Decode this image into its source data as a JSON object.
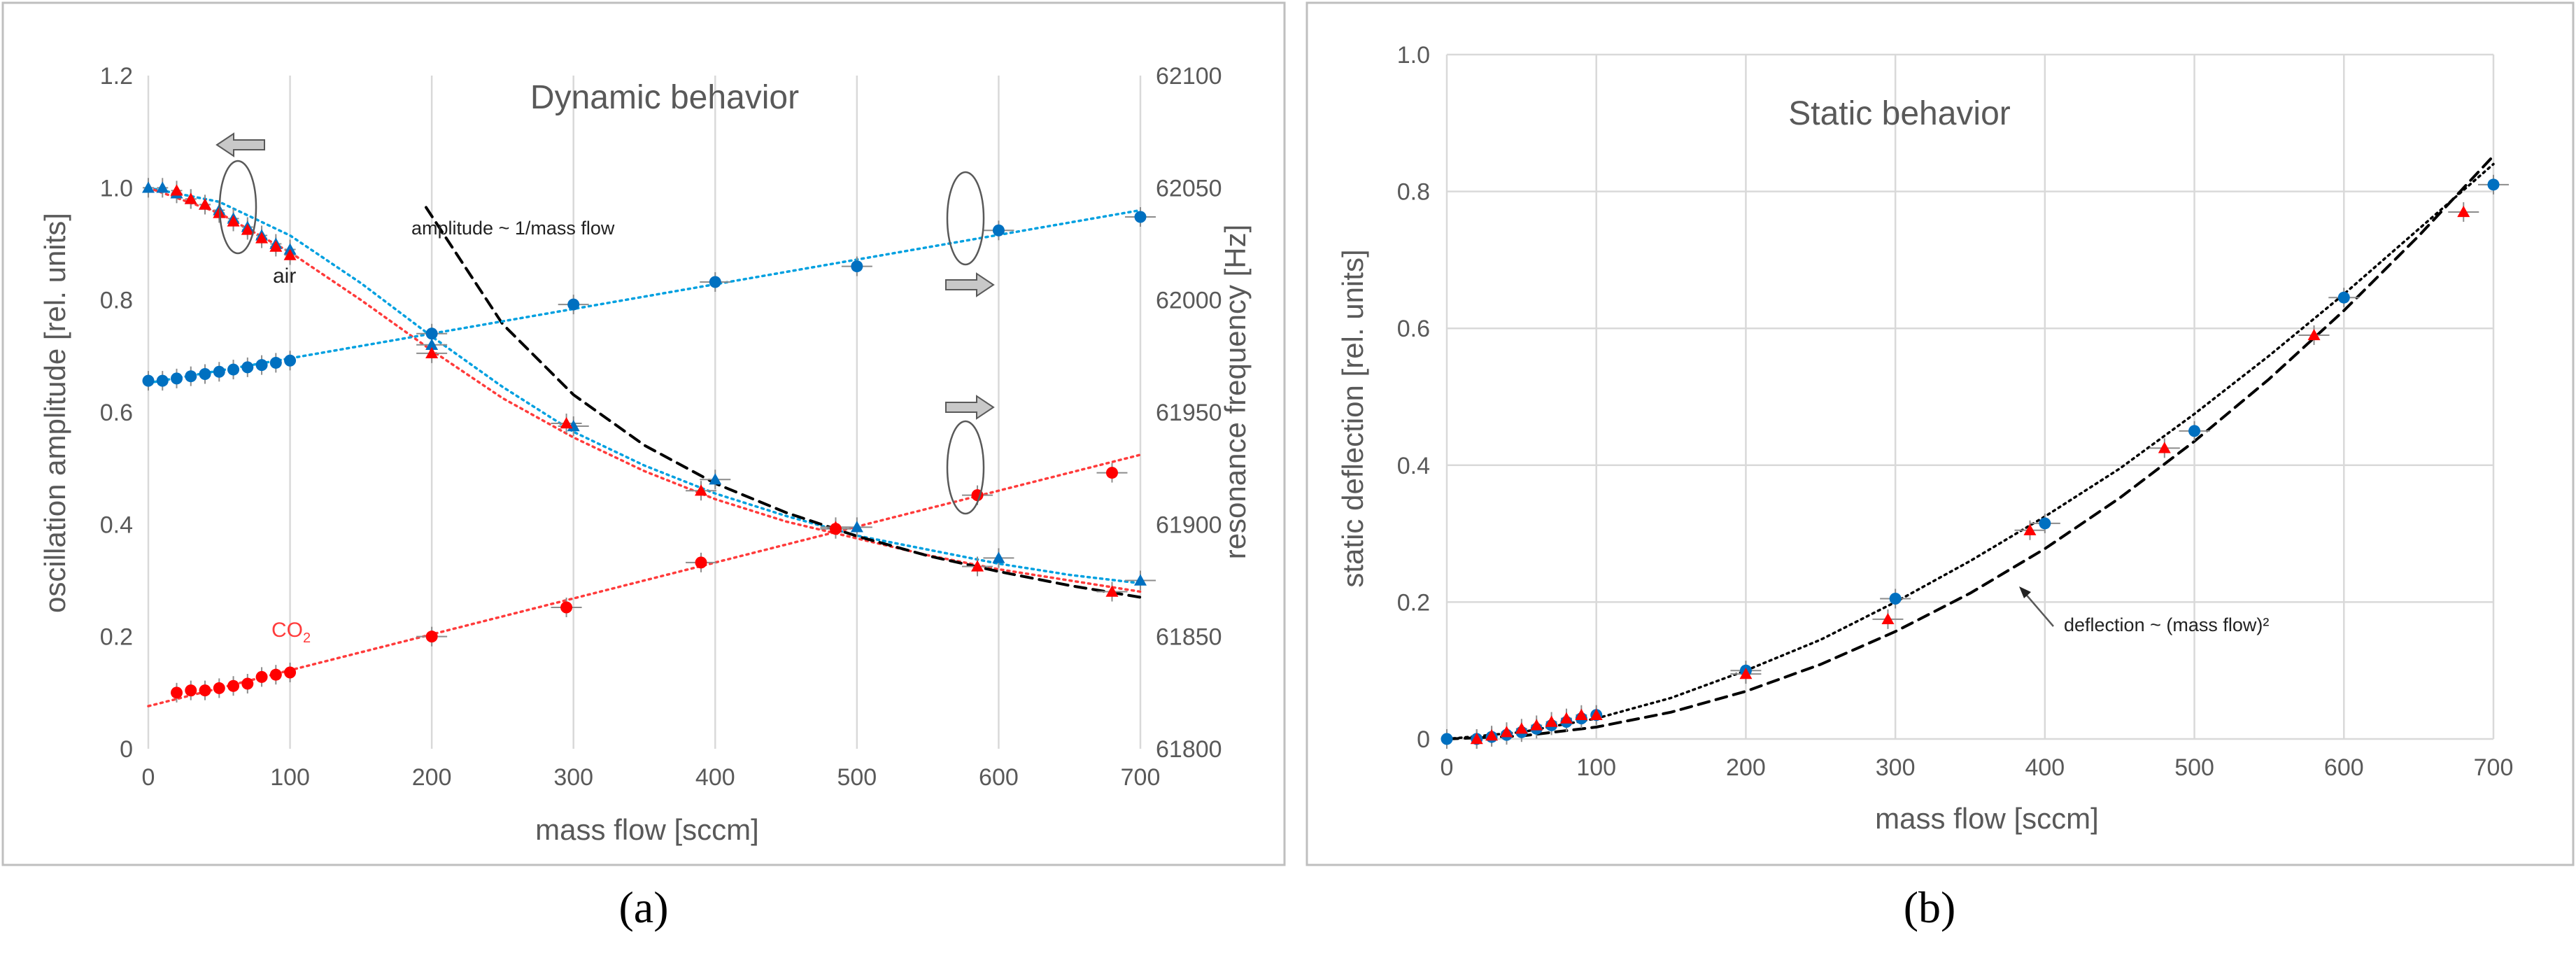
{
  "colors": {
    "air": "#0070c0",
    "co2": "#ff0000",
    "fit_air": "#00a0e0",
    "fit_co2": "#ff3b3b",
    "power_fit": "#000000",
    "arrow_fill": "#c8c8c8"
  },
  "chart_data": [
    {
      "id": "a",
      "panel_label": "(a)",
      "type": "scatter",
      "title": "Dynamic behavior",
      "xlabel": "mass flow [sccm]",
      "ylabel": "oscillation amplitude  [rel. units]",
      "y2label": "resonance frequency [Hz]",
      "xlim": [
        0,
        700
      ],
      "ylim": [
        0,
        1.2
      ],
      "y2lim": [
        61800,
        62100
      ],
      "xticks": [
        0,
        100,
        200,
        300,
        400,
        500,
        600,
        700
      ],
      "xtick_labels": [
        "0",
        "100",
        "200",
        "300",
        "400",
        "500",
        "600",
        "700"
      ],
      "yticks": [
        0,
        0.2,
        0.4,
        0.6,
        0.8,
        1,
        1.2
      ],
      "ytick_labels": [
        "0",
        "0.2",
        "0.4",
        "0.6",
        "0.8",
        "1.0",
        "1.2"
      ],
      "y2ticks": [
        61800,
        61850,
        61900,
        61950,
        62000,
        62050,
        62100
      ],
      "y2tick_labels": [
        "61800",
        "61850",
        "61900",
        "61950",
        "62000",
        "62050",
        "62100"
      ],
      "grid": "vertical",
      "annotations": {
        "air": "air",
        "co2": "CO",
        "co2_sub": "2",
        "power_law": "amplitude ~ 1/mass flow"
      },
      "series": [
        {
          "name": "air amplitude",
          "gas": "air",
          "marker": "triangle",
          "axis": "left",
          "x": [
            0,
            10,
            20,
            30,
            40,
            50,
            60,
            70,
            80,
            90,
            100,
            200,
            300,
            400,
            500,
            600,
            700
          ],
          "y": [
            1.0,
            1.0,
            0.99,
            0.98,
            0.97,
            0.96,
            0.945,
            0.93,
            0.915,
            0.9,
            0.89,
            0.72,
            0.575,
            0.48,
            0.395,
            0.34,
            0.3
          ]
        },
        {
          "name": "CO2 amplitude",
          "gas": "co2",
          "marker": "triangle",
          "axis": "left",
          "x": [
            20,
            30,
            40,
            50,
            60,
            70,
            80,
            90,
            100,
            200,
            295,
            390,
            485,
            585,
            680
          ],
          "y": [
            0.995,
            0.98,
            0.97,
            0.955,
            0.94,
            0.925,
            0.91,
            0.895,
            0.88,
            0.705,
            0.58,
            0.46,
            0.395,
            0.325,
            0.28
          ]
        },
        {
          "name": "air resonance frequency",
          "gas": "air",
          "marker": "circle",
          "axis": "right",
          "x": [
            0,
            10,
            20,
            30,
            40,
            50,
            60,
            70,
            80,
            90,
            100,
            200,
            300,
            400,
            500,
            600,
            700
          ],
          "y": [
            61964,
            61964,
            61965,
            61966,
            61967,
            61968,
            61969,
            61970,
            61971,
            61972,
            61973,
            61985,
            61998,
            62008,
            62015,
            62031,
            62037
          ]
        },
        {
          "name": "CO2 resonance frequency",
          "gas": "co2",
          "marker": "circle",
          "axis": "right",
          "x": [
            20,
            30,
            40,
            50,
            60,
            70,
            80,
            90,
            100,
            200,
            295,
            390,
            485,
            585,
            680
          ],
          "y": [
            61825,
            61826,
            61826,
            61827,
            61828,
            61829,
            61832,
            61833,
            61834,
            61850,
            61863,
            61883,
            61898,
            61913,
            61923
          ]
        }
      ],
      "fits": [
        {
          "name": "air amplitude fit",
          "gas": "air",
          "axis": "left",
          "x": [
            0,
            50,
            100,
            150,
            200,
            250,
            300,
            350,
            400,
            450,
            500,
            550,
            600,
            650,
            700
          ],
          "y": [
            1.0,
            0.975,
            0.915,
            0.83,
            0.735,
            0.645,
            0.565,
            0.505,
            0.455,
            0.415,
            0.38,
            0.355,
            0.33,
            0.31,
            0.295
          ]
        },
        {
          "name": "CO2 amplitude fit",
          "gas": "co2",
          "axis": "left",
          "x": [
            0,
            50,
            100,
            150,
            200,
            250,
            300,
            350,
            400,
            450,
            500,
            550,
            600,
            650,
            700
          ],
          "y": [
            1.0,
            0.955,
            0.885,
            0.8,
            0.71,
            0.625,
            0.555,
            0.495,
            0.445,
            0.405,
            0.375,
            0.345,
            0.32,
            0.3,
            0.28
          ]
        },
        {
          "name": "power law 1/mass flow",
          "gas": "power",
          "axis": "left",
          "x": [
            196,
            250,
            300,
            350,
            400,
            450,
            500,
            550,
            600,
            650,
            700
          ],
          "y": [
            0.965,
            0.757,
            0.631,
            0.541,
            0.473,
            0.421,
            0.379,
            0.344,
            0.316,
            0.291,
            0.27
          ]
        },
        {
          "name": "air frequency fit",
          "gas": "air",
          "axis": "right",
          "x": [
            0,
            700
          ],
          "y": [
            61963,
            62040
          ]
        },
        {
          "name": "CO2 frequency fit",
          "gas": "co2",
          "axis": "right",
          "x": [
            0,
            700
          ],
          "y": [
            61819,
            61931
          ]
        }
      ]
    },
    {
      "id": "b",
      "panel_label": "(b)",
      "type": "scatter",
      "title": "Static behavior",
      "xlabel": "mass flow [sccm]",
      "ylabel": "static deflection [rel. units]",
      "xlim": [
        0,
        700
      ],
      "ylim": [
        0,
        1.0
      ],
      "xticks": [
        0,
        100,
        200,
        300,
        400,
        500,
        600,
        700
      ],
      "xtick_labels": [
        "0",
        "100",
        "200",
        "300",
        "400",
        "500",
        "600",
        "700"
      ],
      "yticks": [
        0,
        0.2,
        0.4,
        0.6,
        0.8,
        1
      ],
      "ytick_labels": [
        "0",
        "0.2",
        "0.4",
        "0.6",
        "0.8",
        "1.0"
      ],
      "grid": "both",
      "annotations": {
        "power_law": "deflection ~ (mass flow)²"
      },
      "series": [
        {
          "name": "air deflection",
          "gas": "air",
          "marker": "circle",
          "x": [
            0,
            20,
            30,
            40,
            50,
            60,
            70,
            80,
            90,
            100,
            200,
            300,
            400,
            500,
            600,
            700
          ],
          "y": [
            0,
            0,
            0.003,
            0.006,
            0.01,
            0.015,
            0.02,
            0.025,
            0.03,
            0.035,
            0.1,
            0.205,
            0.315,
            0.45,
            0.645,
            0.81
          ]
        },
        {
          "name": "CO2 deflection",
          "gas": "co2",
          "marker": "triangle",
          "x": [
            20,
            30,
            40,
            50,
            60,
            70,
            80,
            90,
            100,
            200,
            295,
            390,
            480,
            580,
            680
          ],
          "y": [
            0,
            0.005,
            0.01,
            0.015,
            0.02,
            0.025,
            0.03,
            0.035,
            0.035,
            0.095,
            0.175,
            0.305,
            0.425,
            0.59,
            0.77
          ]
        }
      ],
      "fits": [
        {
          "name": "quadratic fit",
          "gas": "fit",
          "x": [
            0,
            50,
            100,
            150,
            200,
            250,
            300,
            350,
            400,
            450,
            500,
            550,
            600,
            650,
            700
          ],
          "y": [
            0,
            0.01,
            0.03,
            0.06,
            0.1,
            0.145,
            0.2,
            0.26,
            0.325,
            0.395,
            0.475,
            0.56,
            0.65,
            0.745,
            0.84
          ]
        },
        {
          "name": "power law (mass flow)^2",
          "gas": "power",
          "x": [
            0,
            50,
            100,
            150,
            200,
            250,
            300,
            350,
            400,
            450,
            500,
            550,
            600,
            650,
            700
          ],
          "y": [
            0,
            0.0044,
            0.0174,
            0.0392,
            0.0696,
            0.109,
            0.157,
            0.213,
            0.278,
            0.352,
            0.435,
            0.526,
            0.626,
            0.735,
            0.852
          ]
        }
      ]
    }
  ]
}
